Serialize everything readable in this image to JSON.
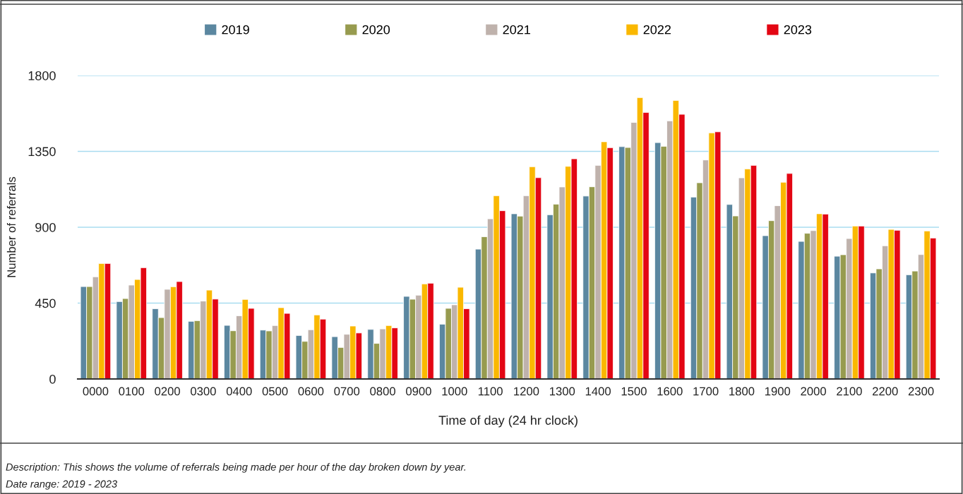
{
  "chart_data": {
    "type": "bar",
    "xlabel": "Time of day (24 hr clock)",
    "ylabel": "Number of referrals",
    "categories": [
      "0000",
      "0100",
      "0200",
      "0300",
      "0400",
      "0500",
      "0600",
      "0700",
      "0800",
      "0900",
      "1000",
      "1100",
      "1200",
      "1300",
      "1400",
      "1500",
      "1600",
      "1700",
      "1800",
      "1900",
      "2000",
      "2100",
      "2200",
      "2300"
    ],
    "series": [
      {
        "name": "2019",
        "color": "#5b87a0",
        "values": [
          548,
          459,
          417,
          342,
          318,
          290,
          258,
          251,
          294,
          490,
          325,
          770,
          980,
          974,
          1085,
          1378,
          1402,
          1079,
          1035,
          850,
          816,
          728,
          629,
          618
        ]
      },
      {
        "name": "2020",
        "color": "#979b4f",
        "values": [
          548,
          477,
          364,
          346,
          286,
          285,
          223,
          187,
          211,
          473,
          419,
          844,
          966,
          1037,
          1140,
          1373,
          1380,
          1164,
          967,
          939,
          864,
          737,
          653,
          640
        ]
      },
      {
        "name": "2021",
        "color": "#bfb2ac",
        "values": [
          606,
          557,
          532,
          462,
          375,
          317,
          292,
          265,
          297,
          497,
          440,
          950,
          1087,
          1139,
          1267,
          1522,
          1531,
          1299,
          1193,
          1028,
          880,
          833,
          790,
          738
        ]
      },
      {
        "name": "2022",
        "color": "#fab800",
        "values": [
          685,
          590,
          547,
          527,
          472,
          423,
          380,
          314,
          317,
          564,
          544,
          1087,
          1259,
          1261,
          1407,
          1669,
          1652,
          1460,
          1246,
          1167,
          980,
          907,
          887,
          878
        ]
      },
      {
        "name": "2023",
        "color": "#e30613",
        "values": [
          685,
          660,
          578,
          474,
          419,
          389,
          355,
          273,
          303,
          568,
          417,
          998,
          1194,
          1306,
          1372,
          1581,
          1570,
          1466,
          1267,
          1219,
          978,
          907,
          882,
          836
        ]
      }
    ],
    "ylim": [
      0,
      1800
    ],
    "yticks": [
      0,
      450,
      900,
      1350,
      1800
    ],
    "grid": "y",
    "legend": "top",
    "annotations": [
      "Description: This shows the volume of referrals being made per hour of the day broken down by year.",
      "Date range: 2019 - 2023"
    ]
  }
}
